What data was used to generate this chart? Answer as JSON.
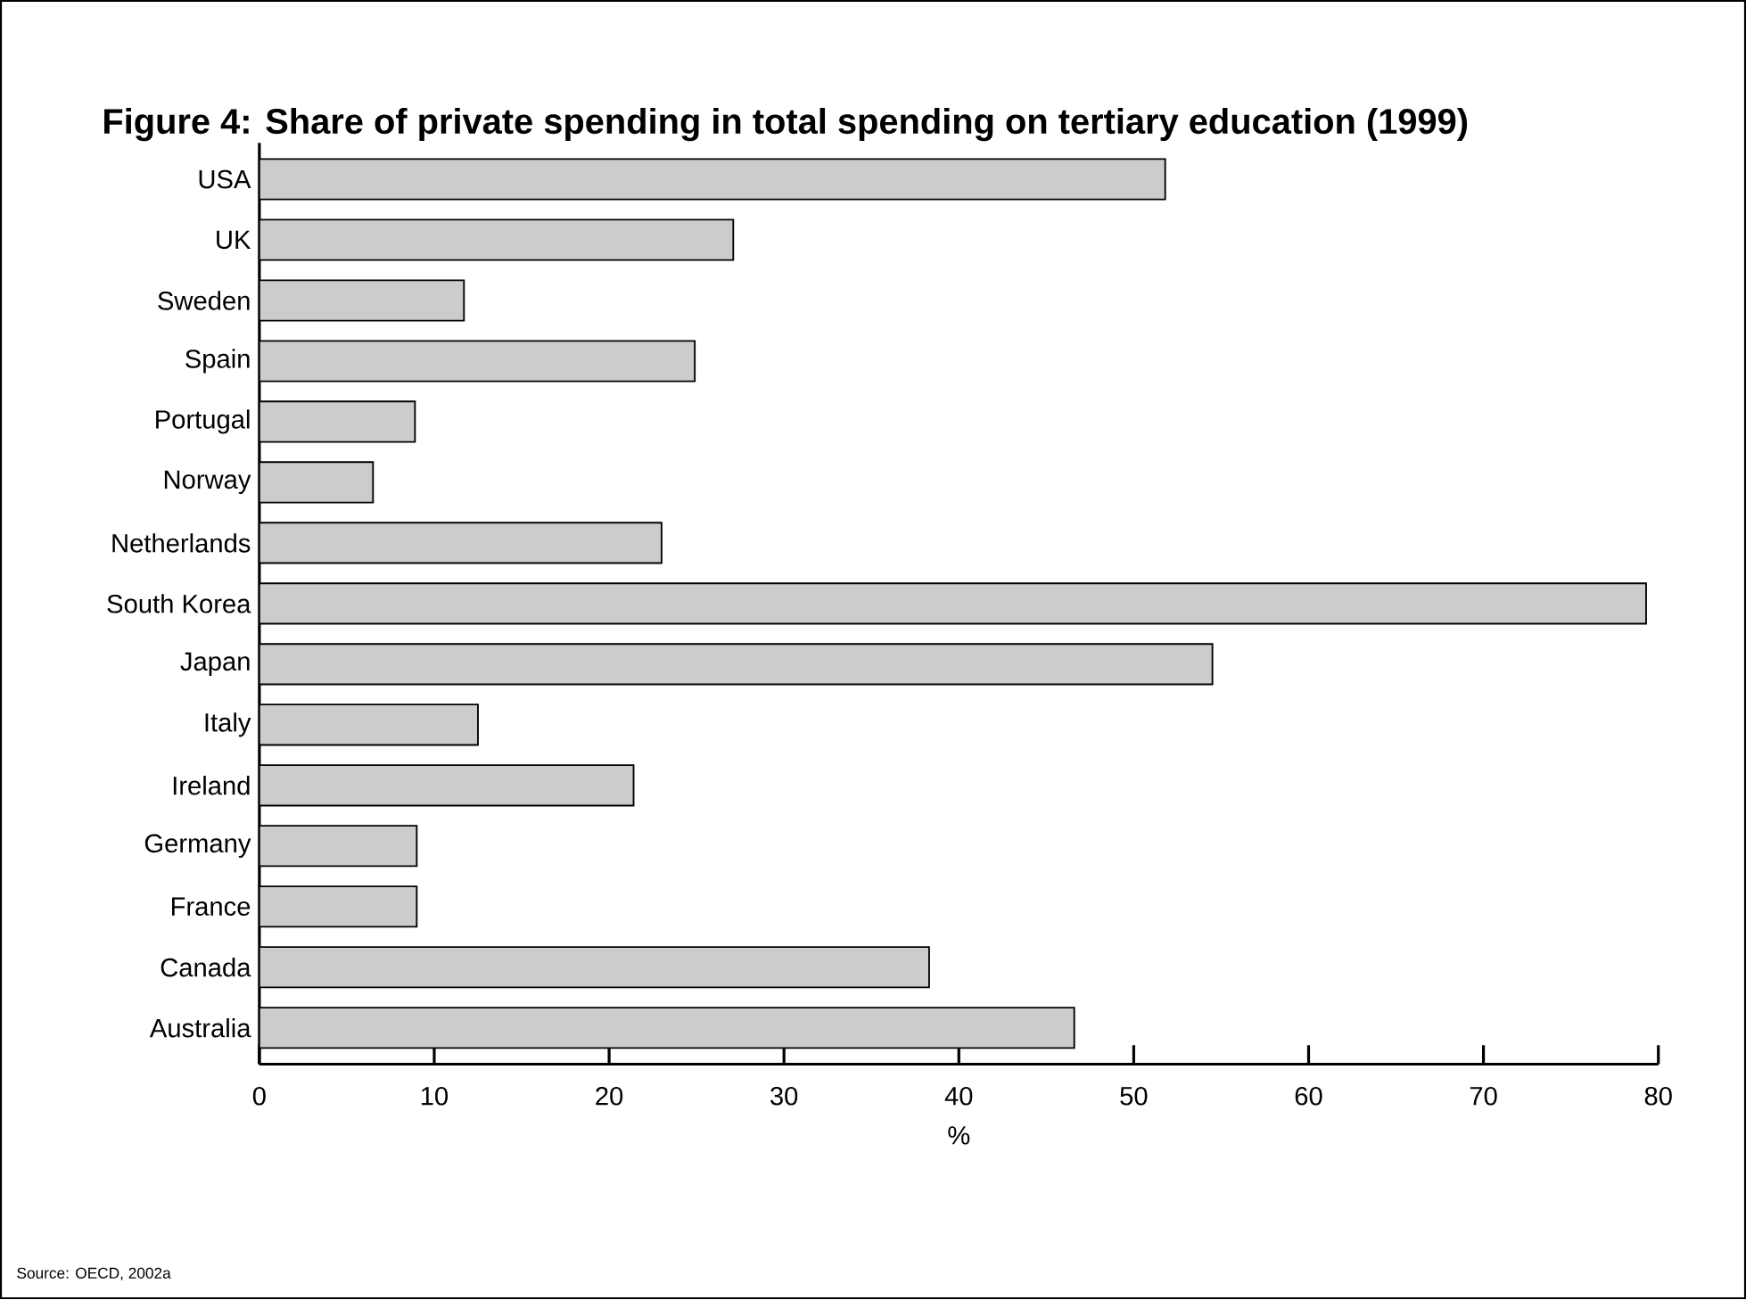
{
  "chart_data": {
    "type": "bar",
    "orientation": "horizontal",
    "title": "Figure 4: Share of private spending in total spending on tertiary education (1999)",
    "categories": [
      "USA",
      "UK",
      "Sweden",
      "Spain",
      "Portugal",
      "Norway",
      "Netherlands",
      "South Korea",
      "Japan",
      "Italy",
      "Ireland",
      "Germany",
      "France",
      "Canada",
      "Australia"
    ],
    "values": [
      51.8,
      27.1,
      11.7,
      24.9,
      8.9,
      6.5,
      23.0,
      79.3,
      54.5,
      12.5,
      21.4,
      9.0,
      9.0,
      38.3,
      46.6
    ],
    "color": "#cccccc",
    "xlabel": "%",
    "xlim": [
      0,
      80
    ],
    "xticks": [
      0,
      10,
      20,
      30,
      40,
      50,
      60,
      70,
      80
    ],
    "grid": false,
    "annotations": [
      "Source: OECD, 2002a"
    ]
  }
}
